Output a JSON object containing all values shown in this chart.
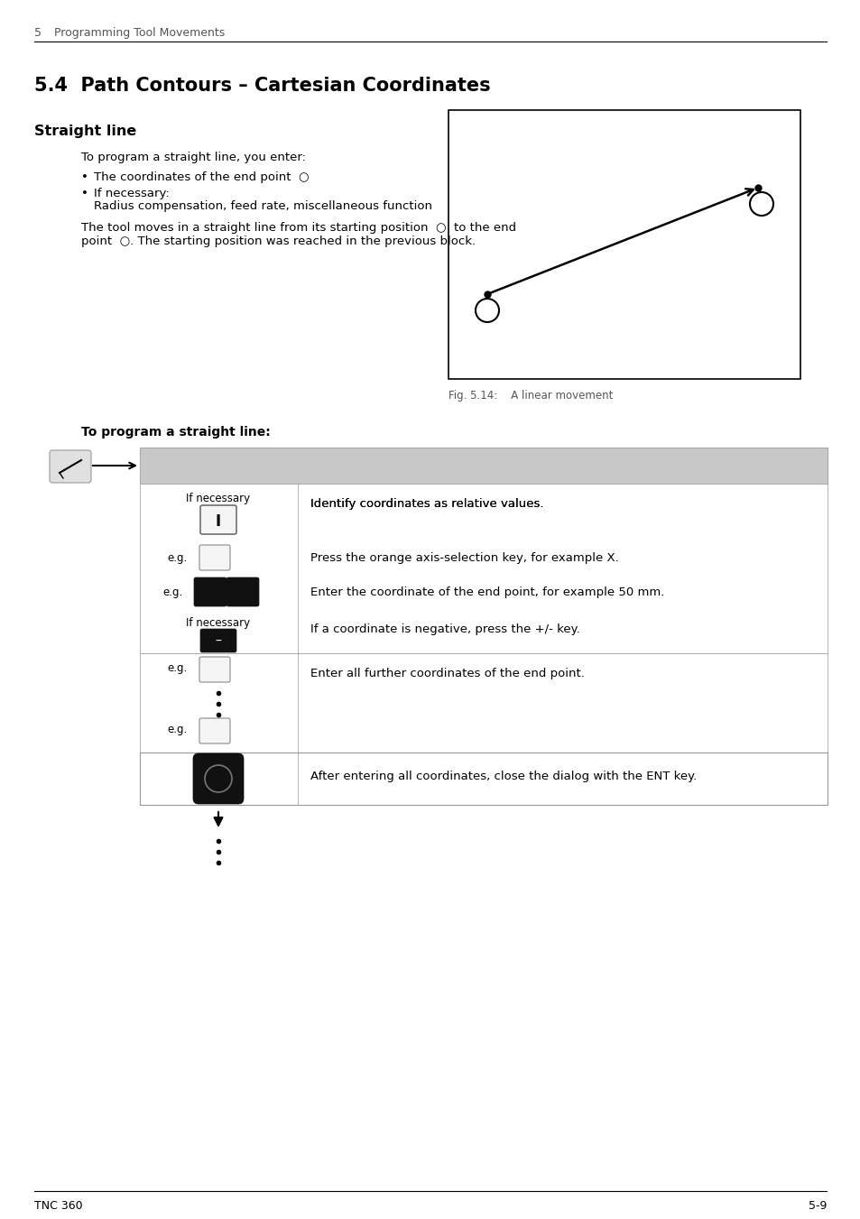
{
  "page_header_num": "5",
  "page_header_text": "Programming Tool Movements",
  "section_title": "5.4  Path Contours – Cartesian Coordinates",
  "subsection_title": "Straight line",
  "body_text_1": "To program a straight line, you enter:",
  "bullet_1": "The coordinates of the end point",
  "bullet_2": "If necessary:",
  "bullet_2b": "Radius compensation, feed rate, miscellaneous function",
  "body_text_2a": "The tool moves in a straight line from its starting position",
  "body_text_2b": "to the end",
  "body_text_3a": "point",
  "body_text_3b": ". The starting position was reached in the previous block.",
  "fig_caption": "Fig. 5.14:    A linear movement",
  "bold_label": "To program a straight line:",
  "row1_right": "Identify coordinates as relative values.",
  "row2_right": "Press the orange axis-selection key, for example X.",
  "row3_right": "Enter the coordinate of the end point, for example 50 mm.",
  "row4_right": "If a coordinate is negative, press the +/- key.",
  "row5_right": "Enter all further coordinates of the end point.",
  "row6_right": "After entering all coordinates, close the dialog with the ENT key.",
  "if_necessary": "If necessary",
  "eg_label": "e.g.",
  "footer_left": "TNC 360",
  "footer_right": "5-9",
  "bg_color": "#ffffff",
  "text_color": "#000000",
  "gray_header": "#cccccc",
  "key_dark": "#111111",
  "key_light_border": "#888888",
  "key_light_fill": "#f8f8f8"
}
